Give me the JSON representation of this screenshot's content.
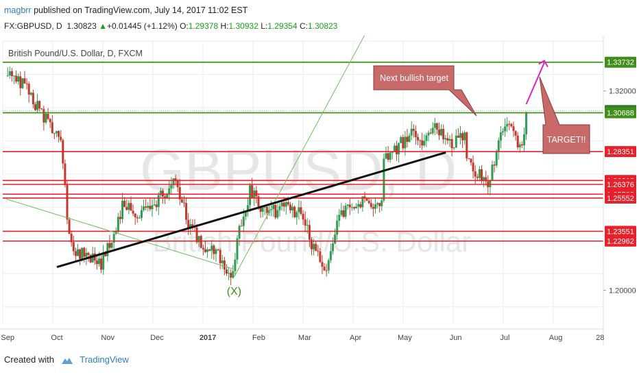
{
  "header": {
    "author": "magbrr",
    "published": "published on TradingView.com, July 14, 2017 11:02 EST",
    "symbol": "FX:GBPUSD, D",
    "last": "1.30823",
    "change": "+0.01445 (+1.12%)",
    "open_label": "O:",
    "open": "1.29378",
    "high_label": "H:",
    "high": "1.30932",
    "low_label": "L:",
    "low": "1.29354",
    "close_label": "C:",
    "close": "1.30823"
  },
  "footer": {
    "created_with": "Created with",
    "brand": "TradingView"
  },
  "colors": {
    "up": "#2e9c52",
    "down": "#c0392b",
    "resistance": "#e8202a",
    "green_line": "#3f8f1a",
    "trend_line": "#111111",
    "pink": "#e020c8",
    "callout_fill": "#c86a6a",
    "watermark": "#e6e6e6"
  },
  "chart_data": {
    "type": "candlestick",
    "title": "British Pound/U.S. Dollar, D, FXCM",
    "watermark": "GBPUSD, D",
    "watermark_sub": "British Pound/U.S. Dollar",
    "x_ticks": [
      "Sep",
      "Oct",
      "Nov",
      "Dec",
      "2017",
      "Feb",
      "Mar",
      "Apr",
      "May",
      "Jun",
      "Jul",
      "Aug",
      "28"
    ],
    "y_ticks": [
      "1.32000",
      "1.20000"
    ],
    "ylim": [
      1.18,
      1.35
    ],
    "levels": [
      {
        "value": "1.33732",
        "price": 1.33732,
        "kind": "green"
      },
      {
        "value": "1.30823",
        "price": 1.30823,
        "kind": "last"
      },
      {
        "value": "1.30688",
        "price": 1.30688,
        "kind": "green"
      },
      {
        "value": "1.28351",
        "price": 1.28351,
        "kind": "red"
      },
      {
        "value": "1.26612",
        "price": 1.26612,
        "kind": "red"
      },
      {
        "value": "1.26376",
        "price": 1.26376,
        "kind": "red"
      },
      {
        "value": "1.25788",
        "price": 1.25788,
        "kind": "red"
      },
      {
        "value": "1.25552",
        "price": 1.25552,
        "kind": "red"
      },
      {
        "value": "1.23551",
        "price": 1.23551,
        "kind": "red"
      },
      {
        "value": "1.22962",
        "price": 1.22962,
        "kind": "red"
      }
    ],
    "annotations": {
      "callout_next": "Next bullish target",
      "callout_target": "TARGET!!",
      "pivot": "(X)"
    },
    "series": [
      {
        "anchors": [
          [
            "2016-09-01",
            1.33
          ],
          [
            "2016-09-05",
            1.33
          ],
          [
            "2016-09-14",
            1.32
          ],
          [
            "2016-09-22",
            1.305
          ],
          [
            "2016-10-03",
            1.29
          ],
          [
            "2016-10-06",
            1.265
          ],
          [
            "2016-10-07",
            1.24
          ],
          [
            "2016-10-12",
            1.222
          ],
          [
            "2016-10-20",
            1.222
          ],
          [
            "2016-10-27",
            1.215
          ],
          [
            "2016-11-04",
            1.23
          ],
          [
            "2016-11-11",
            1.255
          ],
          [
            "2016-11-18",
            1.245
          ],
          [
            "2016-11-28",
            1.248
          ],
          [
            "2016-12-06",
            1.26
          ],
          [
            "2016-12-12",
            1.27
          ],
          [
            "2016-12-20",
            1.24
          ],
          [
            "2016-12-28",
            1.228
          ],
          [
            "2017-01-06",
            1.225
          ],
          [
            "2017-01-12",
            1.215
          ],
          [
            "2017-01-16",
            1.205
          ],
          [
            "2017-01-19",
            1.235
          ],
          [
            "2017-01-27",
            1.26
          ],
          [
            "2017-02-06",
            1.245
          ],
          [
            "2017-02-14",
            1.25
          ],
          [
            "2017-02-20",
            1.25
          ],
          [
            "2017-02-28",
            1.245
          ],
          [
            "2017-03-08",
            1.22
          ],
          [
            "2017-03-14",
            1.215
          ],
          [
            "2017-03-23",
            1.245
          ],
          [
            "2017-04-03",
            1.255
          ],
          [
            "2017-04-12",
            1.248
          ],
          [
            "2017-04-17",
            1.255
          ],
          [
            "2017-04-18",
            1.28
          ],
          [
            "2017-04-26",
            1.285
          ],
          [
            "2017-05-05",
            1.295
          ],
          [
            "2017-05-12",
            1.29
          ],
          [
            "2017-05-18",
            1.298
          ],
          [
            "2017-05-25",
            1.295
          ],
          [
            "2017-05-30",
            1.285
          ],
          [
            "2017-06-02",
            1.29
          ],
          [
            "2017-06-06",
            1.295
          ],
          [
            "2017-06-09",
            1.275
          ],
          [
            "2017-06-14",
            1.27
          ],
          [
            "2017-06-21",
            1.265
          ],
          [
            "2017-06-27",
            1.285
          ],
          [
            "2017-06-30",
            1.3
          ],
          [
            "2017-07-05",
            1.295
          ],
          [
            "2017-07-11",
            1.285
          ],
          [
            "2017-07-13",
            1.292
          ],
          [
            "2017-07-14",
            1.308
          ]
        ]
      }
    ],
    "overlays": {
      "green_line_top": 1.33732,
      "green_line_mid": 1.30688,
      "trend_line": [
        [
          "2016-10-01",
          1.214
        ],
        [
          "2017-05-26",
          1.283
        ]
      ],
      "thin_green_rising": [
        [
          "2017-01-17",
          1.208
        ],
        [
          "2017-04-10",
          1.36
        ]
      ],
      "thin_green_falling": [
        [
          "2016-08-31",
          1.255
        ],
        [
          "2017-01-16",
          1.213
        ]
      ],
      "pink_target": [
        [
          "2017-07-14",
          1.312
        ],
        [
          "2017-07-25",
          1.337
        ]
      ]
    }
  }
}
